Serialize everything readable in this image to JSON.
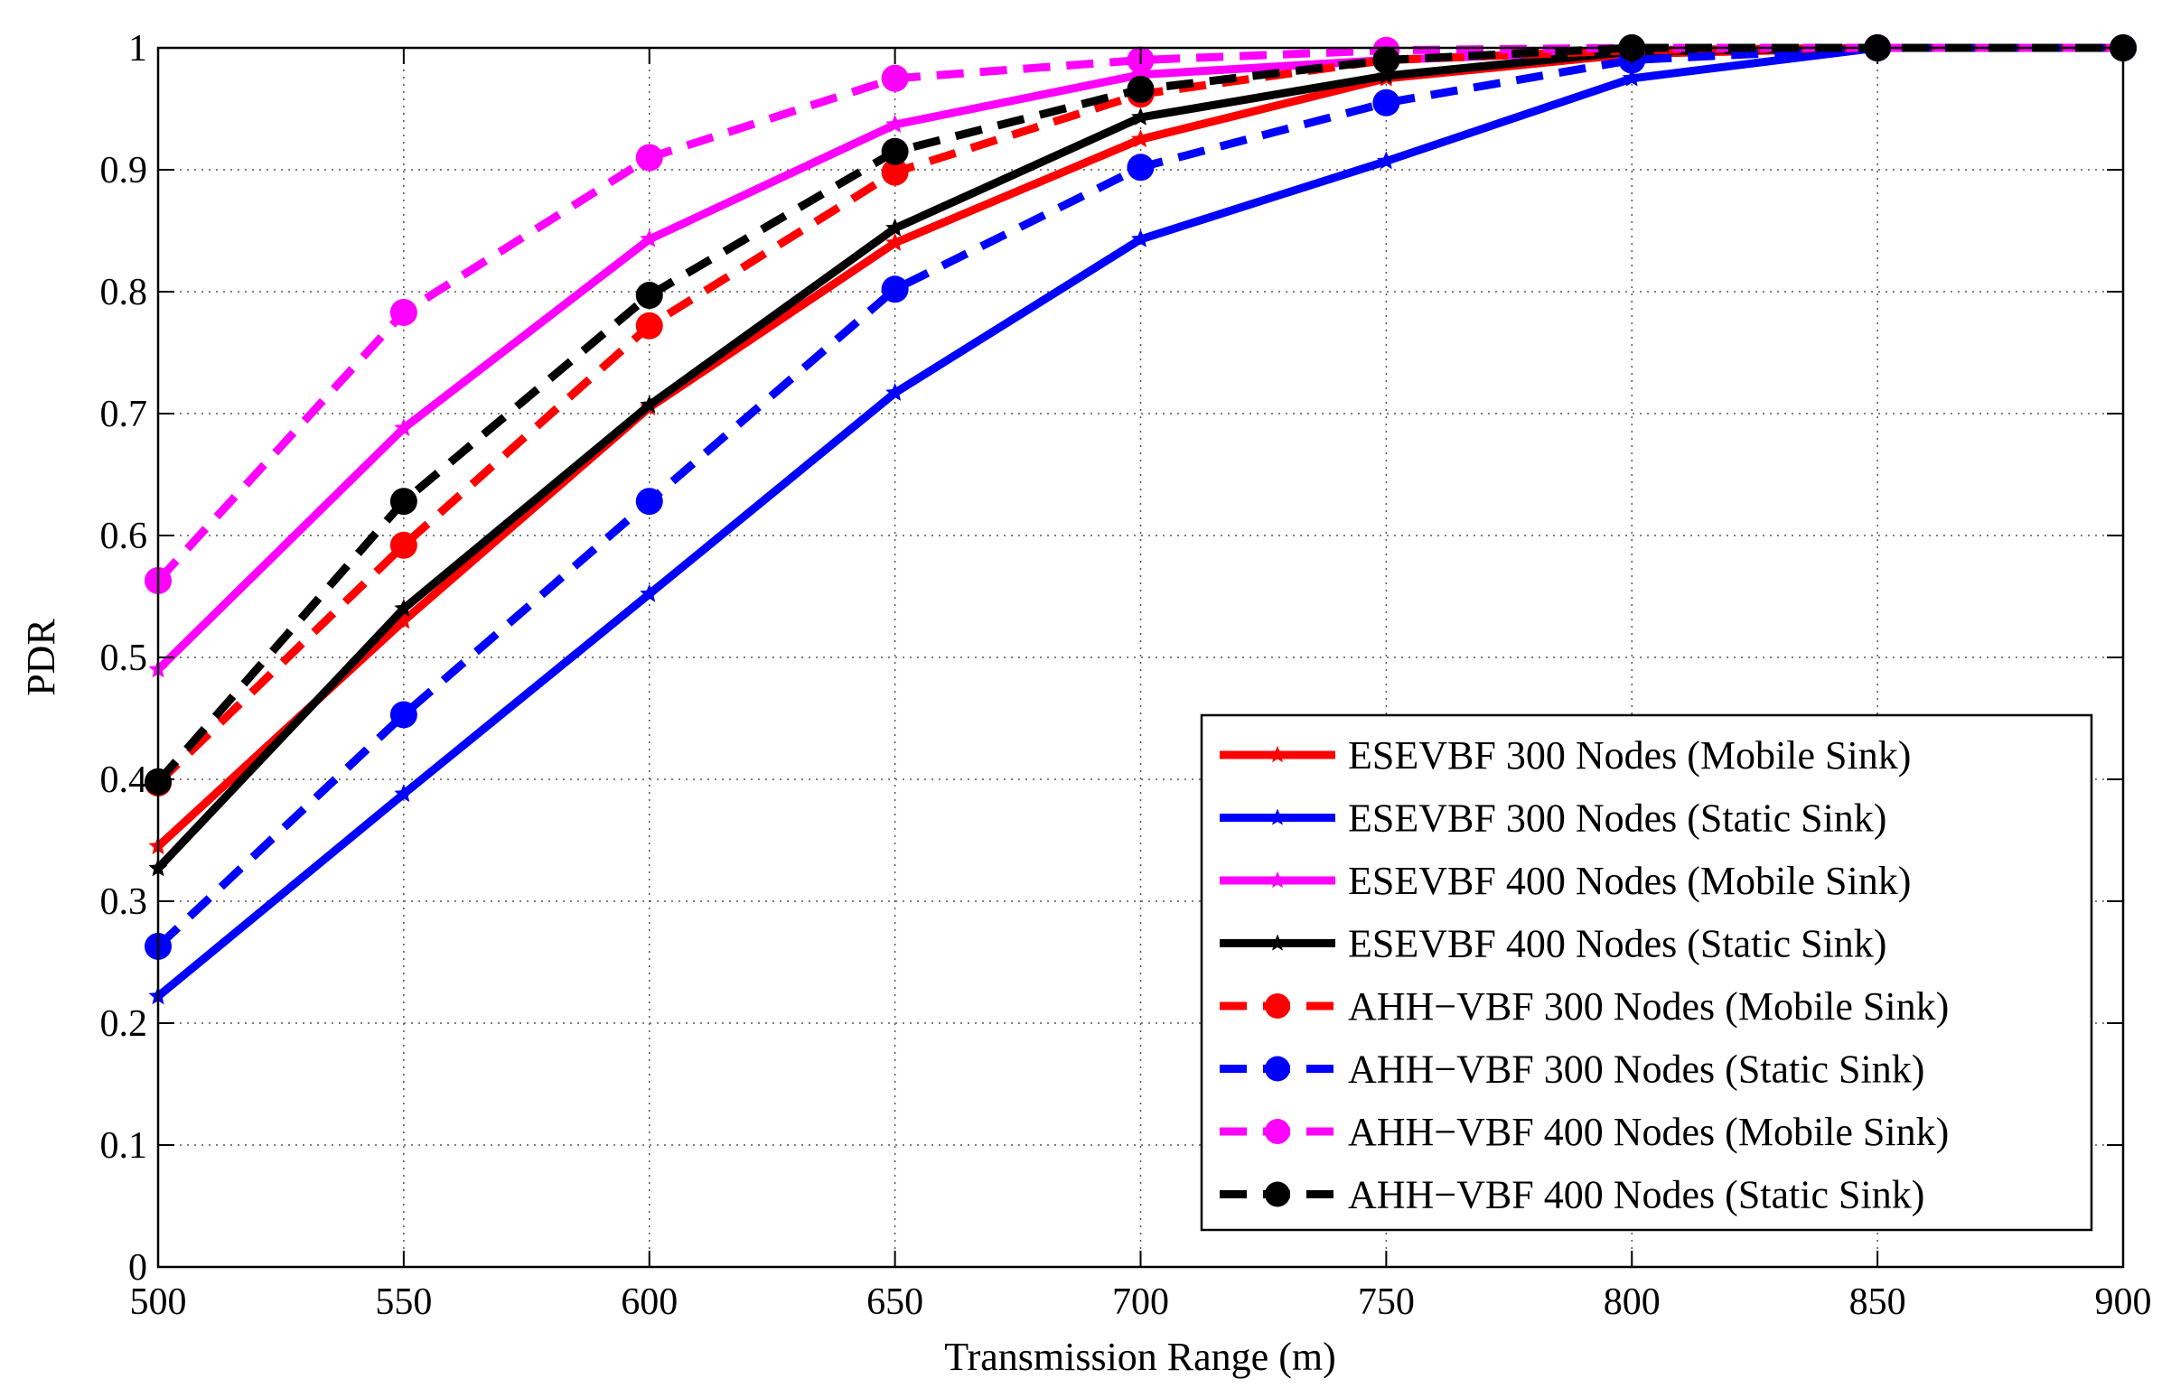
{
  "chart_data": {
    "type": "line",
    "title": "",
    "xlabel": "Transmission Range (m)",
    "ylabel": "PDR",
    "xlim": [
      500,
      900
    ],
    "ylim": [
      0,
      1
    ],
    "x_ticks": [
      500,
      550,
      600,
      650,
      700,
      750,
      800,
      850,
      900
    ],
    "y_ticks": [
      0,
      0.1,
      0.2,
      0.3,
      0.4,
      0.5,
      0.6,
      0.7,
      0.8,
      0.9,
      1
    ],
    "x_tick_labels": [
      "500",
      "550",
      "600",
      "650",
      "700",
      "750",
      "800",
      "850",
      "900"
    ],
    "y_tick_labels": [
      "0",
      "0.1",
      "0.2",
      "0.3",
      "0.4",
      "0.5",
      "0.6",
      "0.7",
      "0.8",
      "0.9",
      "1"
    ],
    "grid": true,
    "legend_position": "bottom-right",
    "x": [
      500,
      550,
      600,
      650,
      700,
      750,
      800,
      850,
      900
    ],
    "series": [
      {
        "name": "ESEVBF 300 Nodes (Mobile Sink)",
        "color": "#ff0000",
        "dash": "solid",
        "marker": "star",
        "values": [
          0.345,
          0.53,
          0.705,
          0.84,
          0.925,
          0.975,
          0.995,
          1.0,
          1.0
        ]
      },
      {
        "name": "ESEVBF 300 Nodes (Static Sink)",
        "color": "#0000ff",
        "dash": "solid",
        "marker": "star",
        "values": [
          0.222,
          0.388,
          0.552,
          0.717,
          0.843,
          0.907,
          0.975,
          1.0,
          1.0
        ]
      },
      {
        "name": "ESEVBF 400 Nodes (Mobile Sink)",
        "color": "#ff00ff",
        "dash": "solid",
        "marker": "star",
        "values": [
          0.49,
          0.688,
          0.843,
          0.937,
          0.978,
          0.99,
          0.998,
          1.0,
          1.0
        ]
      },
      {
        "name": "ESEVBF 400 Nodes (Static Sink)",
        "color": "#000000",
        "dash": "solid",
        "marker": "star",
        "values": [
          0.327,
          0.54,
          0.707,
          0.852,
          0.943,
          0.977,
          0.997,
          1.0,
          1.0
        ]
      },
      {
        "name": "AHH−VBF 300 Nodes (Mobile Sink)",
        "color": "#ff0000",
        "dash": "dashed",
        "marker": "circle",
        "values": [
          0.397,
          0.592,
          0.772,
          0.898,
          0.962,
          0.99,
          0.998,
          1.0,
          1.0
        ]
      },
      {
        "name": "AHH−VBF 300 Nodes (Static Sink)",
        "color": "#0000ff",
        "dash": "dashed",
        "marker": "circle",
        "values": [
          0.263,
          0.453,
          0.628,
          0.802,
          0.902,
          0.955,
          0.99,
          1.0,
          1.0
        ]
      },
      {
        "name": "AHH−VBF 400 Nodes (Mobile Sink)",
        "color": "#ff00ff",
        "dash": "dashed",
        "marker": "circle",
        "values": [
          0.563,
          0.783,
          0.91,
          0.975,
          0.99,
          0.998,
          1.0,
          1.0,
          1.0
        ]
      },
      {
        "name": "AHH−VBF 400 Nodes (Static Sink)",
        "color": "#000000",
        "dash": "dashed",
        "marker": "circle",
        "values": [
          0.398,
          0.628,
          0.797,
          0.915,
          0.966,
          0.99,
          1.0,
          1.0,
          1.0
        ]
      }
    ]
  }
}
